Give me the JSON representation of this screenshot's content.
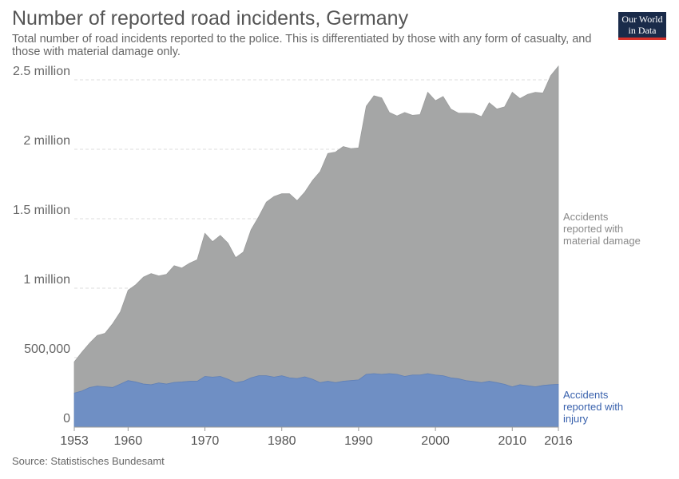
{
  "header": {
    "title": "Number of reported road incidents, Germany",
    "subtitle": "Total number of road incidents reported to the police. This is differentiated by those with any form of casualty, and those with material damage only.",
    "logo_line1": "Our World",
    "logo_line2": "in Data"
  },
  "footer": {
    "source": "Source: Statistisches Bundesamt"
  },
  "colors": {
    "injury": "#6f8fc4",
    "material": "#a5a6a6",
    "injury_label": "#3a62ad",
    "material_label": "#8a8a8a"
  },
  "chart_data": {
    "type": "area",
    "stacked": true,
    "title": "Number of reported road incidents, Germany",
    "x": [
      1953,
      1954,
      1955,
      1956,
      1957,
      1958,
      1959,
      1960,
      1961,
      1962,
      1963,
      1964,
      1965,
      1966,
      1967,
      1968,
      1969,
      1970,
      1971,
      1972,
      1973,
      1974,
      1975,
      1976,
      1977,
      1978,
      1979,
      1980,
      1981,
      1982,
      1983,
      1984,
      1985,
      1986,
      1987,
      1988,
      1989,
      1990,
      1991,
      1992,
      1993,
      1994,
      1995,
      1996,
      1997,
      1998,
      1999,
      2000,
      2001,
      2002,
      2003,
      2004,
      2005,
      2006,
      2007,
      2008,
      2009,
      2010,
      2011,
      2012,
      2013,
      2014,
      2015,
      2016
    ],
    "series": [
      {
        "name": "Accidents reported with injury",
        "values": [
          245000,
          260000,
          285000,
          295000,
          290000,
          285000,
          310000,
          335000,
          325000,
          310000,
          305000,
          318000,
          310000,
          322000,
          325000,
          330000,
          330000,
          365000,
          360000,
          365000,
          345000,
          320000,
          330000,
          355000,
          370000,
          370000,
          360000,
          370000,
          355000,
          350000,
          362000,
          345000,
          320000,
          330000,
          320000,
          330000,
          335000,
          340000,
          380000,
          385000,
          380000,
          385000,
          380000,
          365000,
          375000,
          375000,
          385000,
          375000,
          370000,
          355000,
          348000,
          335000,
          328000,
          320000,
          330000,
          320000,
          308000,
          290000,
          305000,
          298000,
          290000,
          300000,
          305000,
          308000
        ]
      },
      {
        "name": "Accidents reported with material damage",
        "values": [
          225000,
          280000,
          320000,
          365000,
          385000,
          460000,
          520000,
          650000,
          700000,
          770000,
          800000,
          770000,
          790000,
          840000,
          820000,
          850000,
          875000,
          1030000,
          975000,
          1015000,
          980000,
          900000,
          930000,
          1065000,
          1145000,
          1250000,
          1300000,
          1310000,
          1325000,
          1280000,
          1330000,
          1430000,
          1520000,
          1640000,
          1660000,
          1690000,
          1670000,
          1670000,
          1930000,
          2000000,
          1990000,
          1880000,
          1860000,
          1900000,
          1870000,
          1875000,
          2025000,
          1975000,
          2010000,
          1935000,
          1912000,
          1925000,
          1930000,
          1915000,
          2005000,
          1970000,
          1997000,
          2120000,
          2060000,
          2097000,
          2120000,
          2105000,
          2225000,
          2290000
        ]
      }
    ],
    "y_ticks": [
      0,
      500000,
      1000000,
      1500000,
      2000000,
      2500000
    ],
    "y_tick_labels": [
      "0",
      "500,000",
      "1 million",
      "1.5 million",
      "2 million",
      "2.5 million"
    ],
    "x_ticks": [
      1953,
      1960,
      1970,
      1980,
      1990,
      2000,
      2010,
      2016
    ],
    "x_tick_labels": [
      "1953",
      "1960",
      "1970",
      "1980",
      "1990",
      "2000",
      "2010",
      "2016"
    ],
    "ylim": [
      0,
      2500000
    ],
    "xlim": [
      1953,
      2016
    ],
    "series_labels": {
      "material": [
        "Accidents",
        "reported with",
        "material damage"
      ],
      "injury": [
        "Accidents",
        "reported with",
        "injury"
      ]
    },
    "grid": true
  }
}
